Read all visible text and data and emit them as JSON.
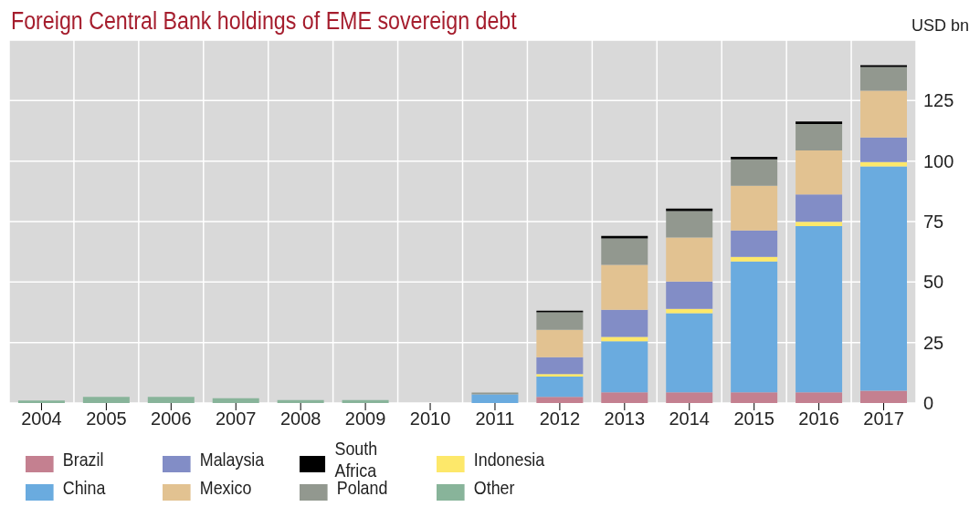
{
  "chart_data": {
    "type": "bar",
    "title": "Foreign Central Bank holdings of EME sovereign debt",
    "ylabel": "USD bn",
    "categories": [
      "2004",
      "2005",
      "2006",
      "2007",
      "2008",
      "2009",
      "2010",
      "2011",
      "2012",
      "2013",
      "2014",
      "2015",
      "2016",
      "2017"
    ],
    "stacked": true,
    "ylim": [
      0,
      150
    ],
    "yticks": [
      0,
      25,
      50,
      75,
      100,
      125
    ],
    "grid": true,
    "legend": "bottom",
    "series": [
      {
        "name": "Brazil",
        "color": "#c48090",
        "values": [
          0,
          0,
          0,
          0,
          0,
          0,
          0,
          0,
          2.5,
          4.4,
          4.4,
          4.4,
          4.4,
          5.1
        ]
      },
      {
        "name": "China",
        "color": "#6aabdf",
        "values": [
          0,
          0,
          0,
          0,
          0,
          0,
          0,
          3.6,
          8.4,
          21.1,
          32.7,
          54.1,
          68.7,
          92.7
        ]
      },
      {
        "name": "Indonesia",
        "color": "#fde86a",
        "values": [
          0,
          0,
          0,
          0,
          0,
          0,
          0,
          0,
          1.1,
          1.8,
          1.8,
          1.9,
          1.8,
          1.8
        ]
      },
      {
        "name": "Malaysia",
        "color": "#828dc6",
        "values": [
          0,
          0,
          0,
          0,
          0,
          0,
          0,
          0,
          6.9,
          11.2,
          11.3,
          10.9,
          11.3,
          10.2
        ]
      },
      {
        "name": "Mexico",
        "color": "#e2c291",
        "values": [
          0,
          0,
          0,
          0,
          0,
          0,
          0,
          0,
          11.3,
          18.6,
          18.2,
          18.5,
          18.2,
          19.3
        ]
      },
      {
        "name": "Poland",
        "color": "#92988f",
        "values": [
          0,
          0,
          0,
          0,
          0,
          0,
          0,
          0.7,
          7.3,
          10.9,
          10.9,
          10.9,
          10.9,
          9.8
        ]
      },
      {
        "name": "South Africa",
        "color": "#000000",
        "values": [
          0,
          0,
          0,
          0,
          0,
          0,
          0,
          0,
          0.7,
          1.1,
          1.1,
          1.1,
          1.1,
          0.7
        ]
      },
      {
        "name": "Other",
        "color": "#88b49a",
        "values": [
          1,
          2.5,
          2.5,
          2,
          1.2,
          1.2,
          0,
          0,
          0,
          0,
          0,
          0,
          0,
          0
        ]
      }
    ]
  }
}
